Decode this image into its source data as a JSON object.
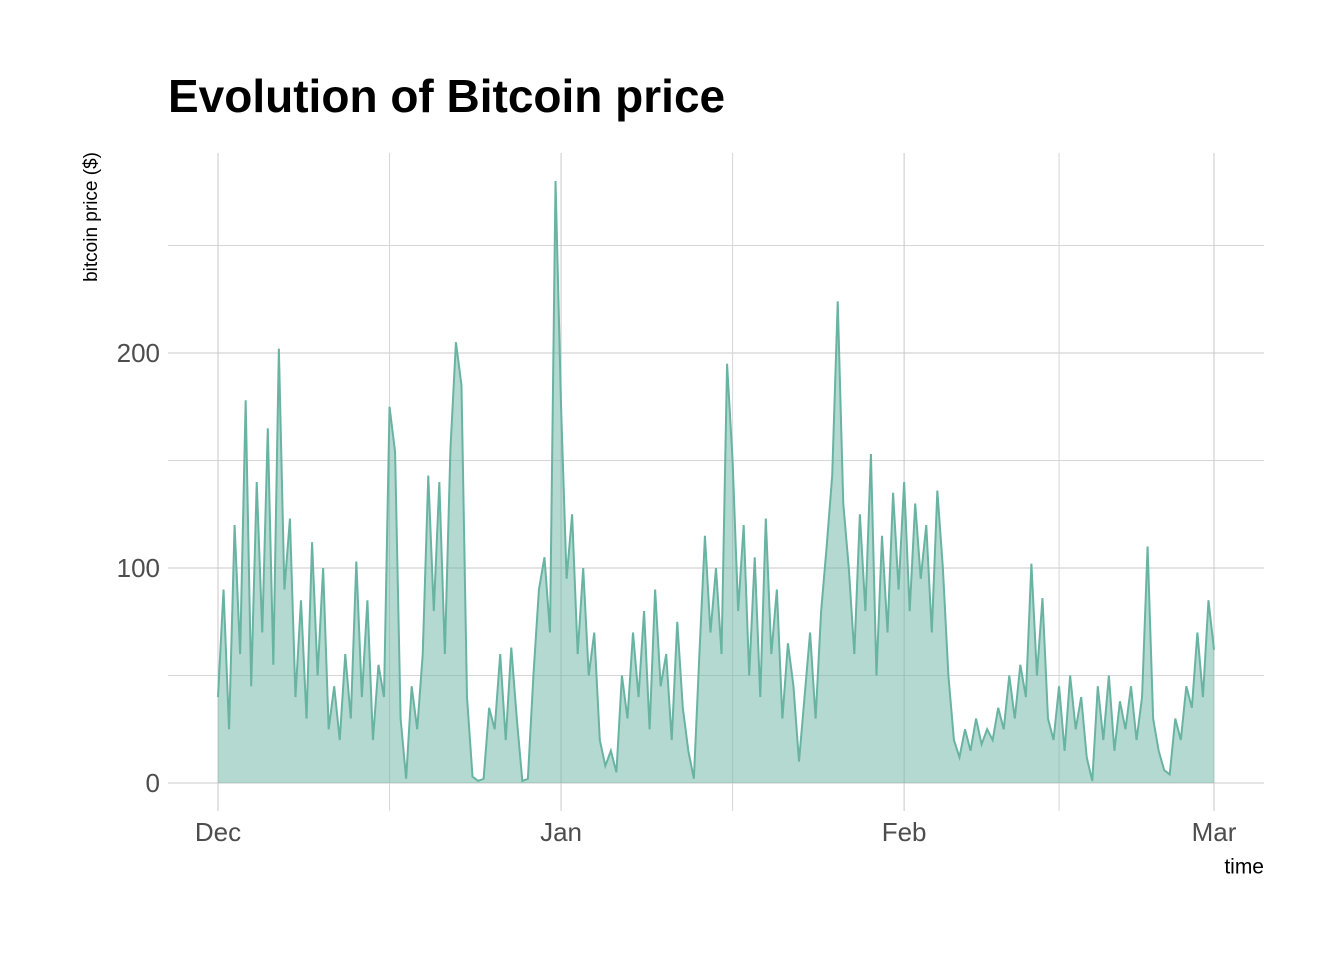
{
  "chart_data": {
    "type": "area",
    "title": "Evolution of Bitcoin price",
    "x_label": "time",
    "y_label": "bitcoin price ($)",
    "color": "#69b3a2",
    "grid": true,
    "ylim": [
      -13,
      293
    ],
    "yticks": [
      0,
      100,
      200
    ],
    "y_minor_gridlines": [
      50,
      150,
      250
    ],
    "categories": [
      "Dec",
      null,
      null,
      null,
      null,
      null,
      null,
      null,
      null,
      null,
      null,
      null,
      null,
      null,
      null,
      null,
      null,
      null,
      null,
      null,
      null,
      null,
      null,
      null,
      null,
      null,
      null,
      null,
      null,
      null,
      null,
      null,
      null,
      null,
      null,
      null,
      null,
      null,
      null,
      null,
      null,
      null,
      null,
      null,
      null,
      null,
      null,
      null,
      null,
      null,
      null,
      null,
      null,
      null,
      null,
      null,
      null,
      null,
      null,
      null,
      null,
      null,
      "Jan",
      null,
      null,
      null,
      null,
      null,
      null,
      null,
      null,
      null,
      null,
      null,
      null,
      null,
      null,
      null,
      null,
      null,
      null,
      null,
      null,
      null,
      null,
      null,
      null,
      null,
      null,
      null,
      null,
      null,
      null,
      null,
      null,
      null,
      null,
      null,
      null,
      null,
      null,
      null,
      null,
      null,
      null,
      null,
      null,
      null,
      null,
      null,
      null,
      null,
      null,
      null,
      null,
      null,
      null,
      null,
      null,
      null,
      null,
      null,
      null,
      null,
      "Feb",
      null,
      null,
      null,
      null,
      null,
      null,
      null,
      null,
      null,
      null,
      null,
      null,
      null,
      null,
      null,
      null,
      null,
      null,
      null,
      null,
      null,
      null,
      null,
      null,
      null,
      null,
      null,
      null,
      null,
      null,
      null,
      null,
      null,
      null,
      null,
      null,
      null,
      null,
      null,
      null,
      null,
      null,
      null,
      null,
      null,
      null,
      null,
      null,
      null,
      null,
      null,
      null,
      null,
      null,
      null,
      "Mar"
    ],
    "values": [
      40,
      90,
      25,
      120,
      60,
      178,
      45,
      140,
      70,
      165,
      55,
      202,
      90,
      123,
      40,
      85,
      30,
      112,
      50,
      100,
      25,
      45,
      20,
      60,
      30,
      103,
      40,
      85,
      20,
      55,
      40,
      175,
      154,
      30,
      2,
      45,
      25,
      60,
      143,
      80,
      140,
      60,
      155,
      205,
      185,
      40,
      3,
      1,
      2,
      35,
      25,
      60,
      20,
      63,
      30,
      1,
      2,
      50,
      90,
      105,
      70,
      280,
      175,
      95,
      125,
      60,
      100,
      50,
      70,
      20,
      8,
      15,
      5,
      50,
      30,
      70,
      40,
      80,
      25,
      90,
      45,
      60,
      20,
      75,
      35,
      15,
      2,
      60,
      115,
      70,
      100,
      60,
      195,
      150,
      80,
      120,
      50,
      105,
      40,
      123,
      60,
      90,
      30,
      65,
      45,
      10,
      40,
      70,
      30,
      80,
      110,
      143,
      224,
      130,
      100,
      60,
      125,
      80,
      153,
      50,
      115,
      70,
      135,
      90,
      140,
      80,
      130,
      95,
      120,
      70,
      136,
      100,
      50,
      20,
      12,
      25,
      15,
      30,
      18,
      25,
      20,
      35,
      25,
      50,
      30,
      55,
      40,
      102,
      50,
      86,
      30,
      20,
      45,
      15,
      50,
      25,
      40,
      12,
      1,
      45,
      20,
      50,
      15,
      38,
      25,
      45,
      20,
      40,
      110,
      30,
      15,
      6,
      4,
      30,
      20,
      45,
      35,
      70,
      40,
      85,
      62
    ]
  }
}
